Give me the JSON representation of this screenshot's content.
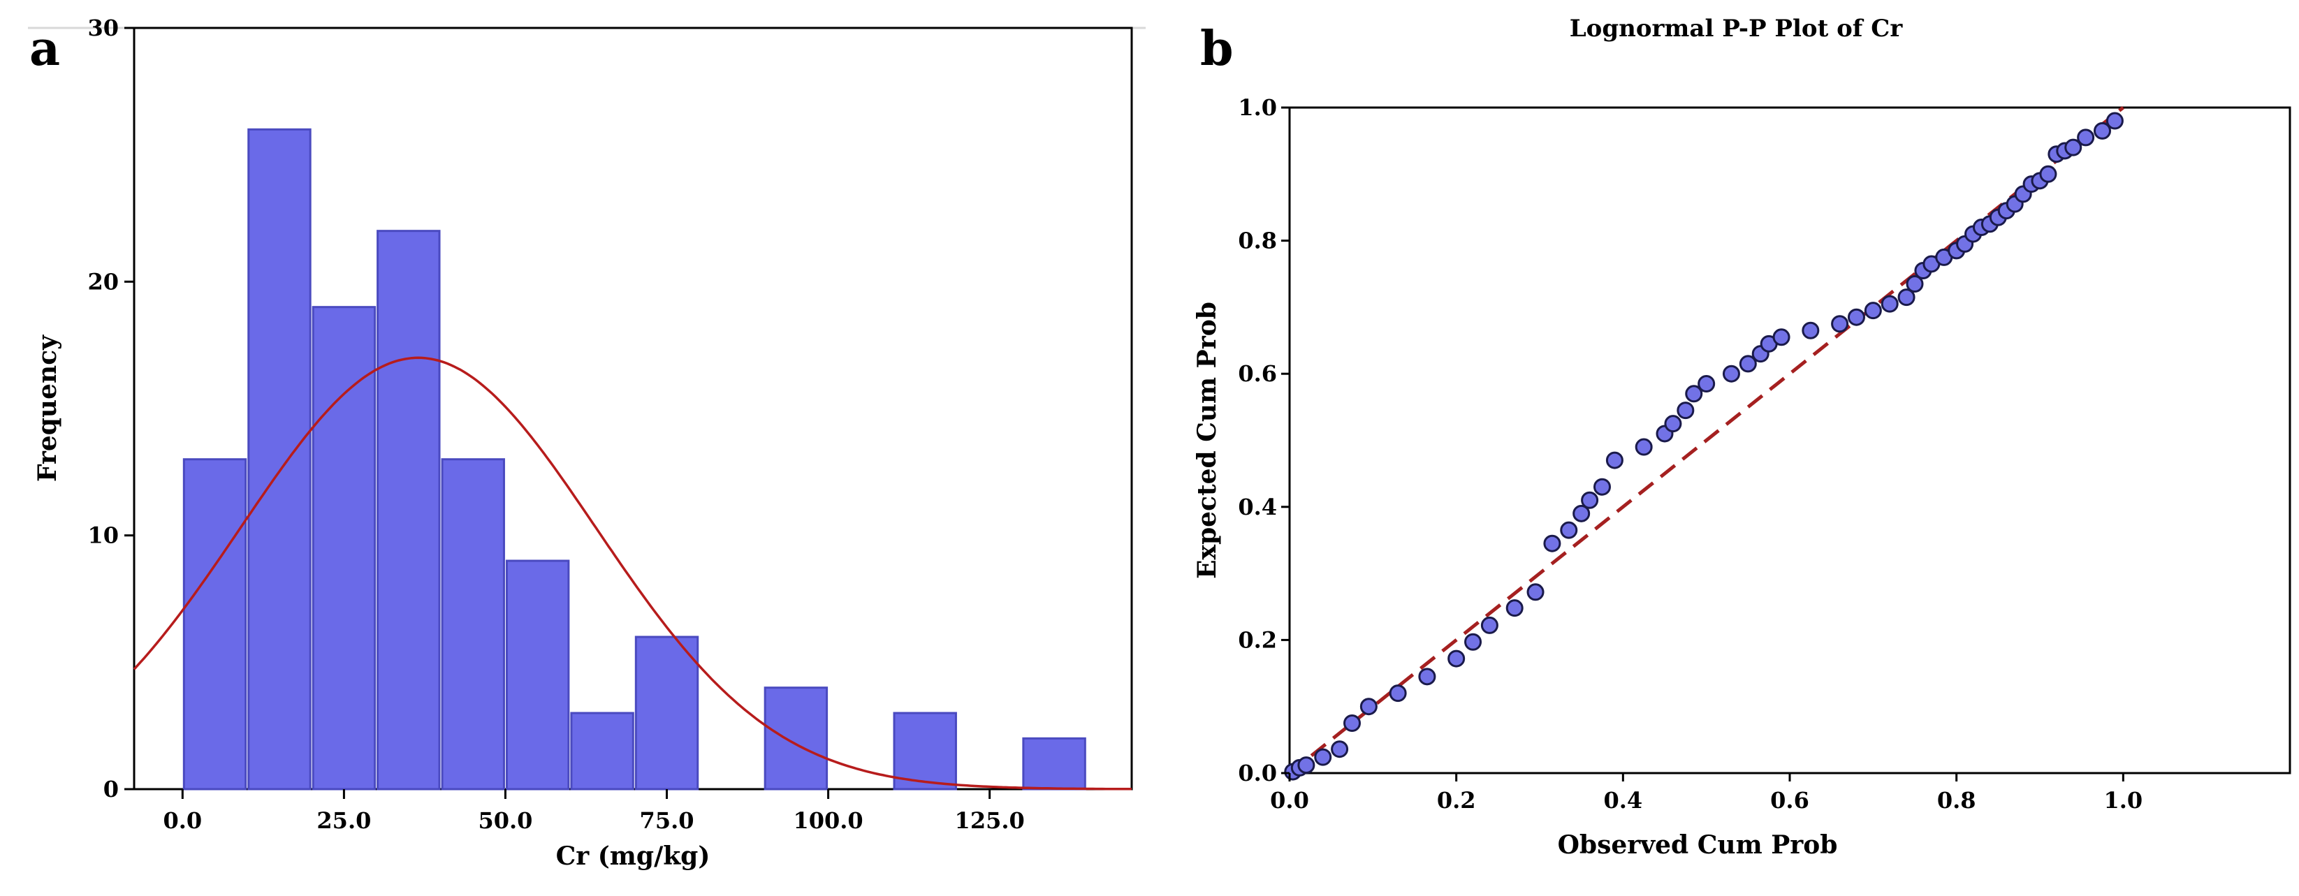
{
  "chart_data": [
    {
      "panel": "a",
      "type": "bar",
      "subtype": "histogram",
      "title": "",
      "xlabel": "Cr (mg/kg)",
      "ylabel": "Frequency",
      "xlim": [
        -7.5,
        147
      ],
      "ylim": [
        0,
        30
      ],
      "x_ticks": [
        0,
        25,
        50,
        75,
        100,
        125
      ],
      "x_tick_labels": [
        "0.0",
        "25.0",
        "50.0",
        "75.0",
        "100.0",
        "125.0"
      ],
      "y_ticks": [
        0,
        10,
        20,
        30
      ],
      "y_tick_labels": [
        "0",
        "10",
        "20",
        "30"
      ],
      "bin_width": 10,
      "bins": [
        {
          "start": 0,
          "end": 10,
          "value": 13
        },
        {
          "start": 10,
          "end": 20,
          "value": 26
        },
        {
          "start": 20,
          "end": 30,
          "value": 19
        },
        {
          "start": 30,
          "end": 40,
          "value": 22
        },
        {
          "start": 40,
          "end": 50,
          "value": 13
        },
        {
          "start": 50,
          "end": 60,
          "value": 9
        },
        {
          "start": 60,
          "end": 70,
          "value": 3
        },
        {
          "start": 70,
          "end": 80,
          "value": 6
        },
        {
          "start": 90,
          "end": 100,
          "value": 4
        },
        {
          "start": 110,
          "end": 120,
          "value": 3
        },
        {
          "start": 130,
          "end": 140,
          "value": 2
        }
      ],
      "normal_curve": {
        "mean": 36.5,
        "sd": 27.5,
        "peak": 17.0
      },
      "colors": {
        "bar": "#6a6ae8",
        "bar_edge": "#4a4ac0",
        "curve": "#b71c1c"
      }
    },
    {
      "panel": "b",
      "type": "scatter",
      "title": "Lognormal P-P Plot of Cr",
      "xlabel": "Observed Cum Prob",
      "ylabel": "Expected Cum Prob",
      "xlim": [
        0,
        1.2
      ],
      "ylim": [
        0,
        1.0
      ],
      "x_ticks": [
        0,
        0.2,
        0.4,
        0.6,
        0.8,
        1.0
      ],
      "x_tick_labels": [
        "0.0",
        "0.2",
        "0.4",
        "0.6",
        "0.8",
        "1.0"
      ],
      "y_ticks": [
        0,
        0.2,
        0.4,
        0.6,
        0.8,
        1.0
      ],
      "y_tick_labels": [
        "0.0",
        "0.2",
        "0.4",
        "0.6",
        "0.8",
        "1.0"
      ],
      "reference_line": {
        "x": [
          0,
          1
        ],
        "y": [
          0,
          1
        ],
        "style": "dashed"
      },
      "points": [
        [
          0.004,
          0.002
        ],
        [
          0.012,
          0.008
        ],
        [
          0.02,
          0.012
        ],
        [
          0.04,
          0.024
        ],
        [
          0.06,
          0.036
        ],
        [
          0.075,
          0.075
        ],
        [
          0.095,
          0.1
        ],
        [
          0.13,
          0.12
        ],
        [
          0.165,
          0.145
        ],
        [
          0.2,
          0.172
        ],
        [
          0.22,
          0.197
        ],
        [
          0.24,
          0.222
        ],
        [
          0.27,
          0.248
        ],
        [
          0.295,
          0.272
        ],
        [
          0.315,
          0.345
        ],
        [
          0.335,
          0.365
        ],
        [
          0.35,
          0.39
        ],
        [
          0.36,
          0.41
        ],
        [
          0.375,
          0.43
        ],
        [
          0.39,
          0.47
        ],
        [
          0.425,
          0.49
        ],
        [
          0.45,
          0.51
        ],
        [
          0.46,
          0.525
        ],
        [
          0.475,
          0.545
        ],
        [
          0.485,
          0.57
        ],
        [
          0.5,
          0.585
        ],
        [
          0.53,
          0.6
        ],
        [
          0.55,
          0.615
        ],
        [
          0.565,
          0.63
        ],
        [
          0.575,
          0.645
        ],
        [
          0.59,
          0.655
        ],
        [
          0.625,
          0.665
        ],
        [
          0.66,
          0.675
        ],
        [
          0.68,
          0.685
        ],
        [
          0.7,
          0.695
        ],
        [
          0.72,
          0.705
        ],
        [
          0.74,
          0.715
        ],
        [
          0.75,
          0.735
        ],
        [
          0.76,
          0.755
        ],
        [
          0.77,
          0.765
        ],
        [
          0.785,
          0.775
        ],
        [
          0.8,
          0.785
        ],
        [
          0.81,
          0.795
        ],
        [
          0.82,
          0.81
        ],
        [
          0.83,
          0.82
        ],
        [
          0.84,
          0.825
        ],
        [
          0.85,
          0.835
        ],
        [
          0.86,
          0.845
        ],
        [
          0.87,
          0.855
        ],
        [
          0.88,
          0.87
        ],
        [
          0.89,
          0.885
        ],
        [
          0.9,
          0.89
        ],
        [
          0.91,
          0.9
        ],
        [
          0.92,
          0.93
        ],
        [
          0.93,
          0.935
        ],
        [
          0.94,
          0.94
        ],
        [
          0.955,
          0.955
        ],
        [
          0.975,
          0.965
        ],
        [
          0.99,
          0.98
        ]
      ],
      "colors": {
        "point": "#7272e6",
        "point_edge": "#1a1a4a",
        "ref_line": "#a52020"
      }
    }
  ]
}
